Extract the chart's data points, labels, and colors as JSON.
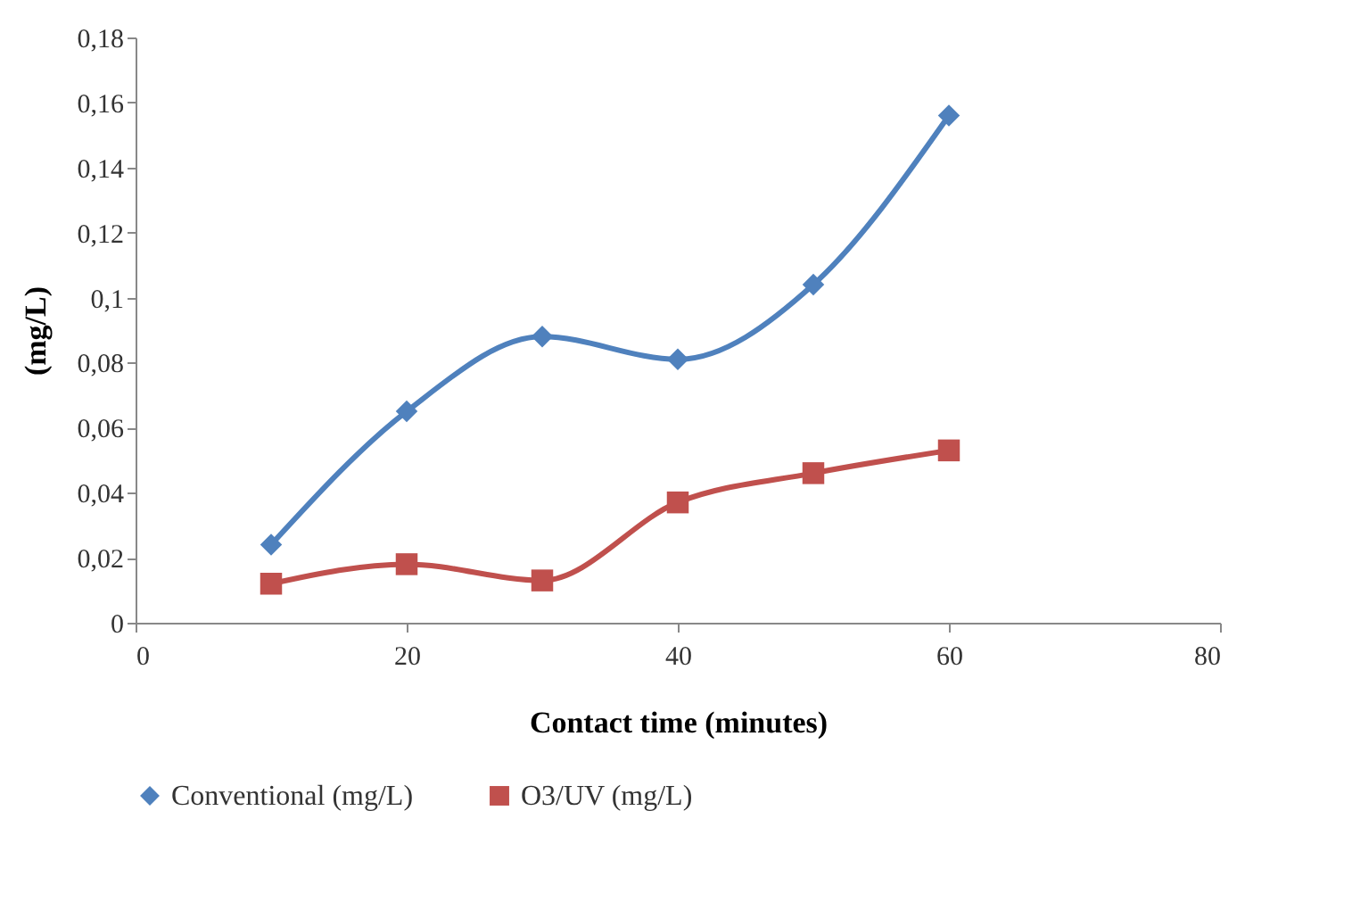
{
  "chart_data": {
    "type": "line",
    "xlabel": "Contact time (minutes)",
    "ylabel": "(mg/L)",
    "x": [
      10,
      20,
      30,
      40,
      50,
      60
    ],
    "series": [
      {
        "name": "Conventional (mg/L)",
        "color": "#4f81bd",
        "marker": "diamond",
        "values": [
          0.024,
          0.065,
          0.088,
          0.081,
          0.104,
          0.156
        ]
      },
      {
        "name": "O3/UV (mg/L)",
        "color": "#c0504d",
        "marker": "square",
        "values": [
          0.012,
          0.018,
          0.013,
          0.037,
          0.046,
          0.053
        ]
      }
    ],
    "xlim": [
      0,
      80
    ],
    "xticks": [
      0,
      20,
      40,
      60,
      80
    ],
    "ylim": [
      0,
      0.18
    ],
    "yticks": [
      {
        "value": 0,
        "label": "0"
      },
      {
        "value": 0.02,
        "label": "0,02"
      },
      {
        "value": 0.04,
        "label": "0,04"
      },
      {
        "value": 0.06,
        "label": "0,06"
      },
      {
        "value": 0.08,
        "label": "0,08"
      },
      {
        "value": 0.1,
        "label": "0,1"
      },
      {
        "value": 0.12,
        "label": "0,12"
      },
      {
        "value": 0.14,
        "label": "0,14"
      },
      {
        "value": 0.16,
        "label": "0,16"
      },
      {
        "value": 0.18,
        "label": "0,18"
      }
    ],
    "grid": false,
    "legend": "bottom",
    "line_style": "solid"
  }
}
